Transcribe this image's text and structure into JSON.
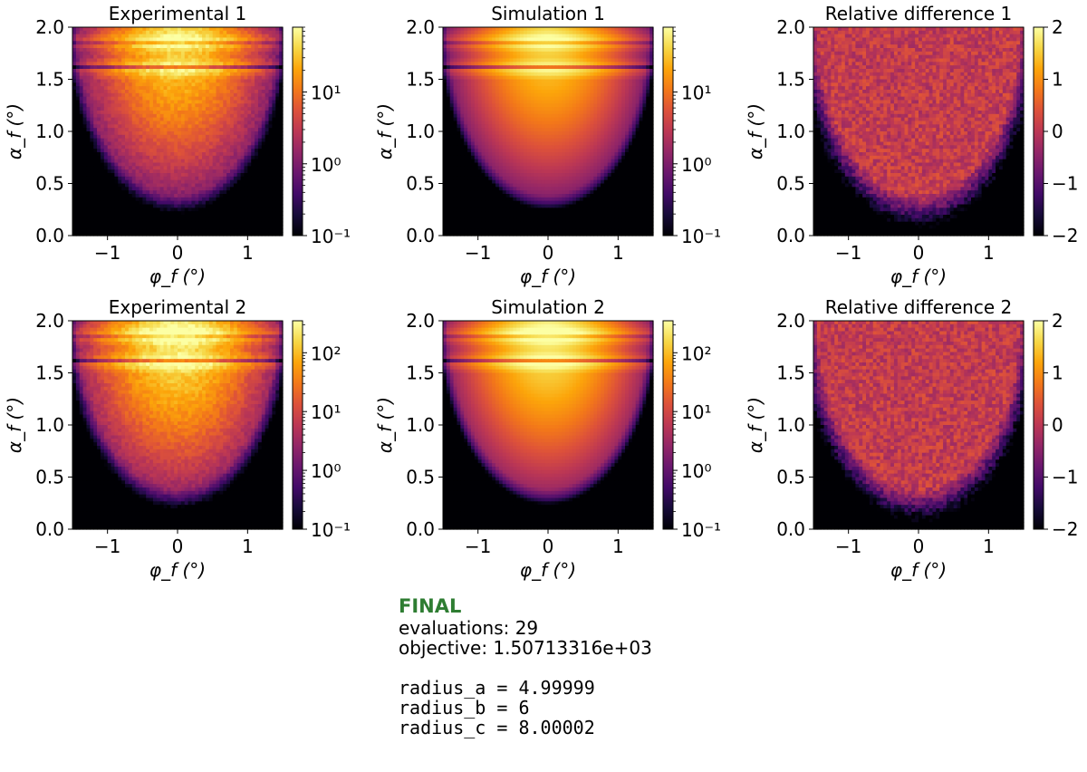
{
  "chart_data": [
    {
      "type": "heatmap",
      "title": "Experimental 1",
      "xlabel": "φ_f (°)",
      "ylabel": "α_f (°)",
      "xlim": [
        -1.5,
        1.5
      ],
      "ylim": [
        0,
        2.0
      ],
      "xticks": [
        "−1",
        "0",
        "1"
      ],
      "yticks": [
        "0.0",
        "0.5",
        "1.0",
        "1.5",
        "2.0"
      ],
      "colorbar": {
        "scale": "log",
        "range": [
          0.1,
          80
        ],
        "ticks": [
          "10⁻¹",
          "10⁰",
          "10¹"
        ]
      },
      "colormap": "inferno",
      "noisy": true
    },
    {
      "type": "heatmap",
      "title": "Simulation 1",
      "xlabel": "φ_f (°)",
      "ylabel": "α_f (°)",
      "xlim": [
        -1.5,
        1.5
      ],
      "ylim": [
        0,
        2.0
      ],
      "xticks": [
        "−1",
        "0",
        "1"
      ],
      "yticks": [
        "0.0",
        "0.5",
        "1.0",
        "1.5",
        "2.0"
      ],
      "colorbar": {
        "scale": "log",
        "range": [
          0.1,
          80
        ],
        "ticks": [
          "10⁻¹",
          "10⁰",
          "10¹"
        ]
      },
      "colormap": "inferno",
      "noisy": false
    },
    {
      "type": "heatmap",
      "title": "Relative difference 1",
      "xlabel": "φ_f (°)",
      "ylabel": "α_f (°)",
      "xlim": [
        -1.5,
        1.5
      ],
      "ylim": [
        0,
        2.0
      ],
      "xticks": [
        "−1",
        "0",
        "1"
      ],
      "yticks": [
        "0.0",
        "0.5",
        "1.0",
        "1.5",
        "2.0"
      ],
      "colorbar": {
        "scale": "linear",
        "range": [
          -2,
          2
        ],
        "ticks": [
          "2",
          "1",
          "0",
          "−1",
          "−2"
        ]
      },
      "colormap": "inferno",
      "noisy": true
    },
    {
      "type": "heatmap",
      "title": "Experimental 2",
      "xlabel": "φ_f (°)",
      "ylabel": "α_f (°)",
      "xlim": [
        -1.5,
        1.5
      ],
      "ylim": [
        0,
        2.0
      ],
      "xticks": [
        "−1",
        "0",
        "1"
      ],
      "yticks": [
        "0.0",
        "0.5",
        "1.0",
        "1.5",
        "2.0"
      ],
      "colorbar": {
        "scale": "log",
        "range": [
          0.1,
          350
        ],
        "ticks": [
          "10⁻¹",
          "10⁰",
          "10¹",
          "10²"
        ]
      },
      "colormap": "inferno",
      "noisy": true
    },
    {
      "type": "heatmap",
      "title": "Simulation 2",
      "xlabel": "φ_f (°)",
      "ylabel": "α_f (°)",
      "xlim": [
        -1.5,
        1.5
      ],
      "ylim": [
        0,
        2.0
      ],
      "xticks": [
        "−1",
        "0",
        "1"
      ],
      "yticks": [
        "0.0",
        "0.5",
        "1.0",
        "1.5",
        "2.0"
      ],
      "colorbar": {
        "scale": "log",
        "range": [
          0.1,
          350
        ],
        "ticks": [
          "10⁻¹",
          "10⁰",
          "10¹",
          "10²"
        ]
      },
      "colormap": "inferno",
      "noisy": false
    },
    {
      "type": "heatmap",
      "title": "Relative difference 2",
      "xlabel": "φ_f (°)",
      "ylabel": "α_f (°)",
      "xlim": [
        -1.5,
        1.5
      ],
      "ylim": [
        0,
        2.0
      ],
      "xticks": [
        "−1",
        "0",
        "1"
      ],
      "yticks": [
        "0.0",
        "0.5",
        "1.0",
        "1.5",
        "2.0"
      ],
      "colorbar": {
        "scale": "linear",
        "range": [
          -2,
          2
        ],
        "ticks": [
          "2",
          "1",
          "0",
          "−1",
          "−2"
        ]
      },
      "colormap": "inferno",
      "noisy": true
    }
  ],
  "fit_info": {
    "status": "FINAL",
    "status_color": "#2e7d32",
    "evaluations": "evaluations: 29",
    "objective": "objective: 1.50713316e+03",
    "parameters": [
      "radius_a = 4.99999",
      "radius_b = 6",
      "radius_c = 8.00002"
    ]
  }
}
